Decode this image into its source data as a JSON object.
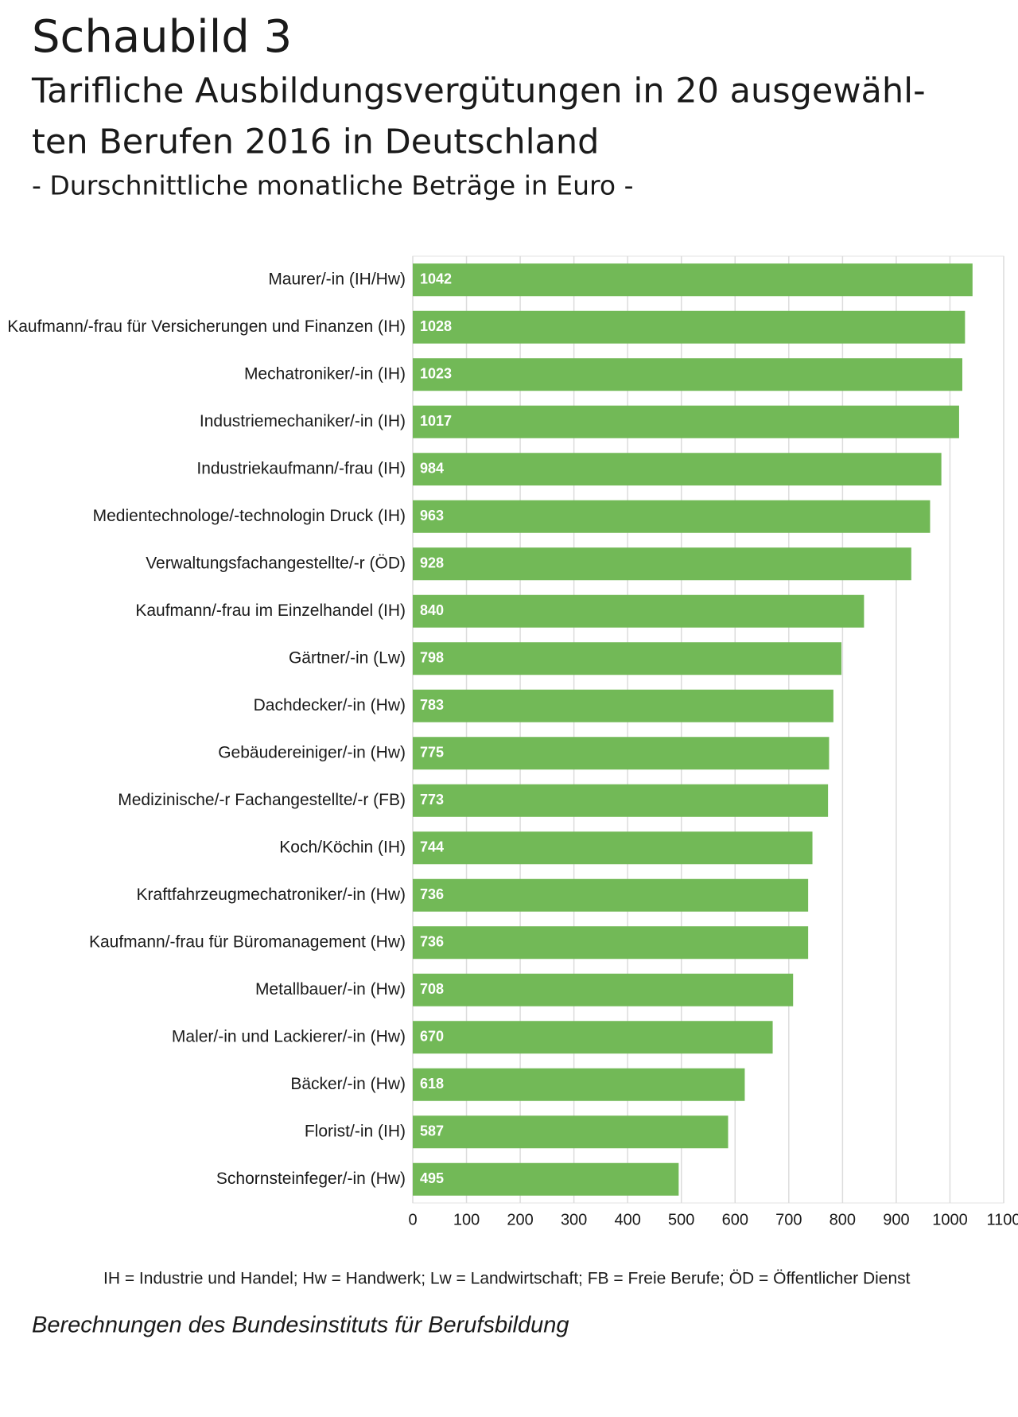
{
  "chart_data": {
    "type": "bar",
    "orientation": "horizontal",
    "heading": "Schaubild 3",
    "title_lines": [
      "Tarifliche Ausbildungsvergütungen in 20 ausgewähl-",
      "ten Berufen 2016 in Deutschland"
    ],
    "subtitle": "- Durschnittliche monatliche Beträge in Euro -",
    "categories": [
      "Maurer/-in (IH/Hw)",
      "Kaufmann/-frau für Versicherungen und Finanzen (IH)",
      "Mechatroniker/-in (IH)",
      "Industriemechaniker/-in (IH)",
      "Industriekaufmann/-frau (IH)",
      "Medientechnologe/-technologin Druck (IH)",
      "Verwaltungsfachangestellte/-r (ÖD)",
      "Kaufmann/-frau im Einzelhandel (IH)",
      "Gärtner/-in (Lw)",
      "Dachdecker/-in (Hw)",
      "Gebäudereiniger/-in (Hw)",
      "Medizinische/-r Fachangestellte/-r (FB)",
      "Koch/Köchin (IH)",
      "Kraftfahrzeugmechatroniker/-in (Hw)",
      "Kaufmann/-frau für Büromanagement (Hw)",
      "Metallbauer/-in (Hw)",
      "Maler/-in und Lackierer/-in (Hw)",
      "Bäcker/-in (Hw)",
      "Florist/-in (IH)",
      "Schornsteinfeger/-in (Hw)"
    ],
    "values": [
      1042,
      1028,
      1023,
      1017,
      984,
      963,
      928,
      840,
      798,
      783,
      775,
      773,
      744,
      736,
      736,
      708,
      670,
      618,
      587,
      495
    ],
    "color": "#72b957",
    "xlim": [
      0,
      1100
    ],
    "xticks": [
      0,
      100,
      200,
      300,
      400,
      500,
      600,
      700,
      800,
      900,
      1000,
      1100
    ],
    "grid": true,
    "footnote": "IH = Industrie und Handel; Hw = Handwerk; Lw = Landwirtschaft; FB = Freie Berufe; ÖD = Öffentlicher Dienst",
    "source": "Berechnungen des Bundesinstituts für Berufsbildung"
  }
}
